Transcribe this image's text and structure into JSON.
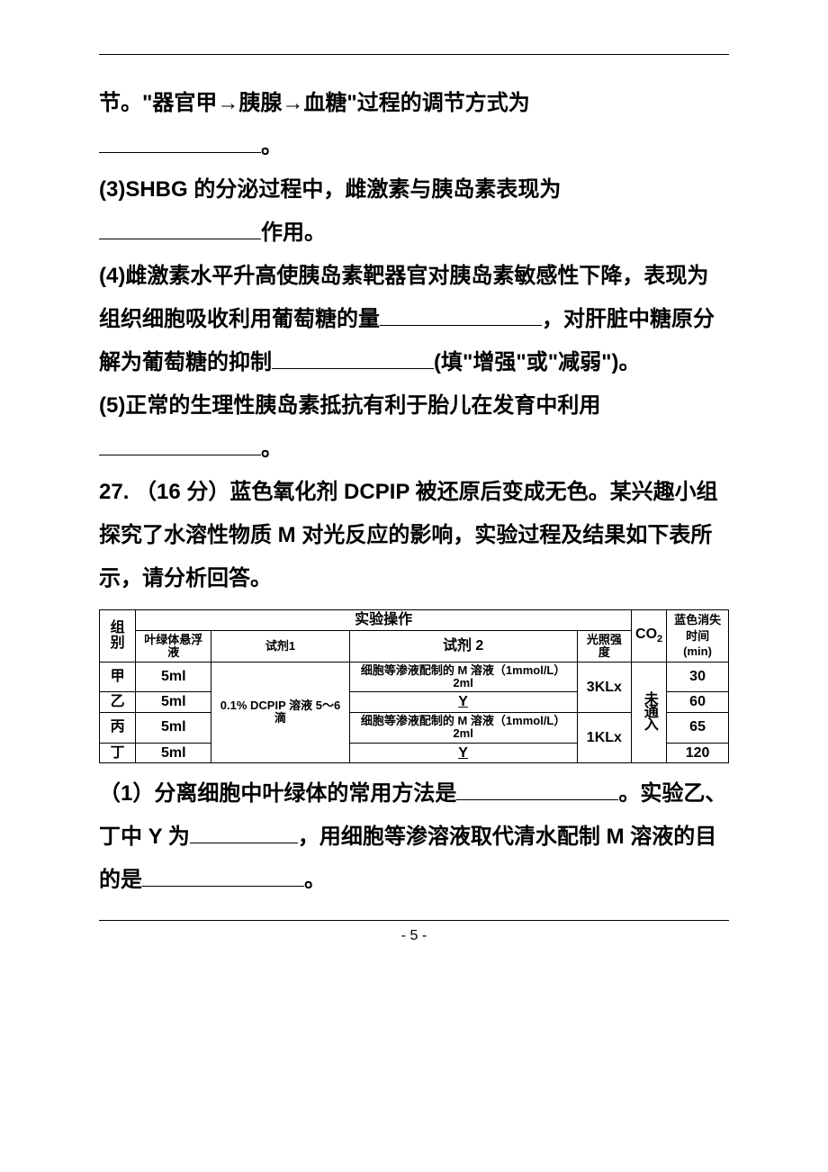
{
  "page": {
    "number": "- 5 -",
    "top_separator": "——",
    "body": {
      "p1_a": "节。\"器官甲→胰腺→血糖\"过程的调节方式为",
      "p1_b": "。",
      "p2_a": "(3)SHBG 的分泌过程中，雌激素与胰岛素表现为",
      "p2_b": "作用。",
      "p3_a": "(4)雌激素水平升高使胰岛素靶器官对胰岛素敏感性下降，表现为组织细胞吸收利用葡萄糖的量",
      "p3_b": "，对肝脏中糖原分解为葡萄糖的抑制",
      "p3_c": "(填\"增强\"或\"减弱\")。",
      "p4_a": "(5)正常的生理性胰岛素抵抗有利于胎儿在发育中利用",
      "p4_b": "。",
      "q27": "27. （16 分）蓝色氧化剂 DCPIP 被还原后变成无色。某兴趣小组探究了水溶性物质 M 对光反应的影响，实验过程及结果如下表所示，请分析回答。",
      "sub1_a": "（1）分离细胞中叶绿体的常用方法是",
      "sub1_b": "。实验乙、丁中 Y 为",
      "sub1_c": "，用细胞等渗溶液取代清水配制 M 溶液的目的是",
      "sub1_d": "。"
    }
  },
  "table": {
    "header_operation": "实验操作",
    "col_group": "组别",
    "col_chloroplast": "叶绿体悬浮液",
    "col_reagent1": "试剂1",
    "col_reagent2": "试剂 2",
    "col_light": "光照强度",
    "col_co2_a": "CO",
    "col_co2_b": "2",
    "col_time_a": "蓝色消失",
    "col_time_b": "时间 (min)",
    "reagent1_value": "0.1% DCPIP 溶液 5～6 滴",
    "co2_value": "未通入",
    "rows": [
      {
        "group": "甲",
        "chloro": "5ml",
        "reagent2": "细胞等渗液配制的 M 溶液（1mmol/L） 2ml",
        "light": "3KLx",
        "time": "30"
      },
      {
        "group": "乙",
        "chloro": "5ml",
        "reagent2": "Y",
        "light": "",
        "time": "60"
      },
      {
        "group": "丙",
        "chloro": "5ml",
        "reagent2": "细胞等渗液配制的 M 溶液（1mmol/L） 2ml",
        "light": "1KLx",
        "time": "65"
      },
      {
        "group": "丁",
        "chloro": "5ml",
        "reagent2": "Y",
        "light": "",
        "time": "120"
      }
    ]
  },
  "style": {
    "background_color": "#ffffff",
    "text_color": "#000000",
    "body_fontsize": 24,
    "table_fontsize": 16,
    "table_small_fontsize": 13,
    "border_color": "#000000",
    "line_height": 2.0
  }
}
